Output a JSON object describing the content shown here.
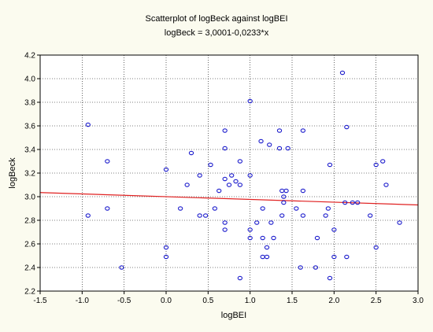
{
  "chart_data": {
    "type": "scatter",
    "title": "Scatterplot of logBeck against logBEI",
    "subtitle": "logBeck = 3,0001-0,0233*x",
    "xlabel": "logBEI",
    "ylabel": "logBeck",
    "xlim": [
      -1.5,
      3.0
    ],
    "ylim": [
      2.2,
      4.2
    ],
    "x_ticks": [
      "-1.5",
      "-1.0",
      "-0.5",
      "0.0",
      "0.5",
      "1.0",
      "1.5",
      "2.0",
      "2.5",
      "3.0"
    ],
    "y_ticks": [
      "2.2",
      "2.4",
      "2.6",
      "2.8",
      "3.0",
      "3.2",
      "3.4",
      "3.6",
      "3.8",
      "4.0",
      "4.2"
    ],
    "grid": true,
    "regression": {
      "intercept": 3.0001,
      "slope": -0.0233,
      "color": "#e02020"
    },
    "marker_color": "#1a1acc",
    "series": [
      {
        "points": [
          [
            -0.93,
            3.61
          ],
          [
            -0.93,
            2.84
          ],
          [
            -0.7,
            3.3
          ],
          [
            -0.7,
            2.9
          ],
          [
            -0.53,
            2.4
          ],
          [
            0.0,
            3.23
          ],
          [
            0.0,
            2.57
          ],
          [
            0.0,
            2.49
          ],
          [
            0.17,
            2.9
          ],
          [
            0.25,
            3.1
          ],
          [
            0.3,
            3.37
          ],
          [
            0.4,
            3.18
          ],
          [
            0.4,
            2.84
          ],
          [
            0.47,
            2.84
          ],
          [
            0.53,
            3.27
          ],
          [
            0.58,
            2.9
          ],
          [
            0.63,
            3.05
          ],
          [
            0.7,
            3.56
          ],
          [
            0.7,
            3.41
          ],
          [
            0.7,
            3.15
          ],
          [
            0.7,
            2.78
          ],
          [
            0.7,
            2.72
          ],
          [
            0.75,
            3.1
          ],
          [
            0.78,
            3.18
          ],
          [
            0.83,
            3.13
          ],
          [
            0.88,
            3.3
          ],
          [
            0.88,
            3.1
          ],
          [
            0.88,
            2.31
          ],
          [
            1.0,
            3.81
          ],
          [
            1.0,
            3.18
          ],
          [
            1.0,
            2.72
          ],
          [
            1.0,
            2.65
          ],
          [
            1.08,
            2.78
          ],
          [
            1.13,
            3.47
          ],
          [
            1.15,
            2.9
          ],
          [
            1.15,
            2.65
          ],
          [
            1.15,
            2.49
          ],
          [
            1.2,
            2.57
          ],
          [
            1.2,
            2.49
          ],
          [
            1.23,
            3.44
          ],
          [
            1.25,
            2.78
          ],
          [
            1.28,
            2.65
          ],
          [
            1.35,
            3.56
          ],
          [
            1.35,
            3.41
          ],
          [
            1.38,
            3.05
          ],
          [
            1.38,
            2.84
          ],
          [
            1.4,
            3.0
          ],
          [
            1.4,
            2.95
          ],
          [
            1.43,
            3.05
          ],
          [
            1.45,
            3.41
          ],
          [
            1.55,
            2.9
          ],
          [
            1.6,
            2.4
          ],
          [
            1.63,
            3.56
          ],
          [
            1.63,
            3.05
          ],
          [
            1.63,
            2.84
          ],
          [
            1.78,
            2.4
          ],
          [
            1.8,
            2.65
          ],
          [
            1.9,
            2.84
          ],
          [
            1.93,
            2.9
          ],
          [
            1.95,
            3.27
          ],
          [
            1.95,
            2.31
          ],
          [
            2.0,
            2.72
          ],
          [
            2.0,
            2.49
          ],
          [
            2.1,
            4.05
          ],
          [
            2.13,
            2.95
          ],
          [
            2.15,
            3.59
          ],
          [
            2.15,
            2.49
          ],
          [
            2.22,
            2.95
          ],
          [
            2.28,
            2.95
          ],
          [
            2.43,
            2.84
          ],
          [
            2.5,
            3.27
          ],
          [
            2.5,
            2.57
          ],
          [
            2.58,
            3.3
          ],
          [
            2.62,
            3.1
          ],
          [
            2.78,
            2.78
          ]
        ]
      }
    ]
  }
}
